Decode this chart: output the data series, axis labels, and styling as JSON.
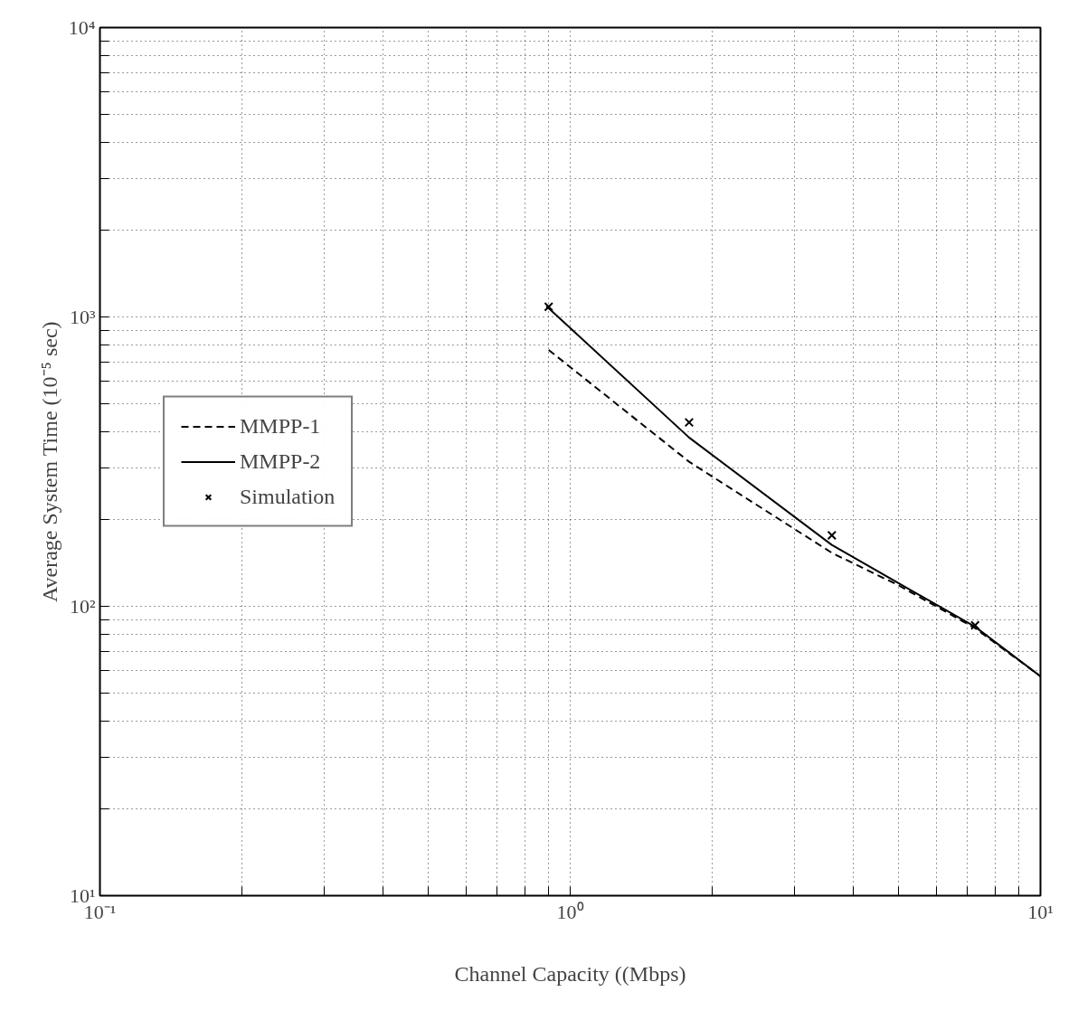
{
  "chart_data": {
    "type": "line",
    "xlabel": "Channel Capacity ((Mbps)",
    "ylabel": "Average System Time (10⁻⁵ sec)",
    "log": "xy",
    "xlim": [
      0.1,
      10
    ],
    "ylim": [
      10,
      10000
    ],
    "xticks": [
      {
        "value": 0.1,
        "label": "10⁻¹"
      },
      {
        "value": 0.2,
        "label": null
      },
      {
        "value": 0.3,
        "label": null
      },
      {
        "value": 0.4,
        "label": null
      },
      {
        "value": 0.5,
        "label": null
      },
      {
        "value": 0.6,
        "label": null
      },
      {
        "value": 0.7,
        "label": null
      },
      {
        "value": 0.8,
        "label": null
      },
      {
        "value": 0.9,
        "label": null
      },
      {
        "value": 1,
        "label": "10⁰"
      },
      {
        "value": 2,
        "label": null
      },
      {
        "value": 3,
        "label": null
      },
      {
        "value": 4,
        "label": null
      },
      {
        "value": 5,
        "label": null
      },
      {
        "value": 6,
        "label": null
      },
      {
        "value": 7,
        "label": null
      },
      {
        "value": 8,
        "label": null
      },
      {
        "value": 9,
        "label": null
      },
      {
        "value": 10,
        "label": "10¹"
      }
    ],
    "yticks": [
      {
        "value": 10,
        "label": "10¹"
      },
      {
        "value": 20,
        "label": null
      },
      {
        "value": 30,
        "label": null
      },
      {
        "value": 40,
        "label": null
      },
      {
        "value": 50,
        "label": null
      },
      {
        "value": 60,
        "label": null
      },
      {
        "value": 70,
        "label": null
      },
      {
        "value": 80,
        "label": null
      },
      {
        "value": 90,
        "label": null
      },
      {
        "value": 100,
        "label": "10²"
      },
      {
        "value": 200,
        "label": null
      },
      {
        "value": 300,
        "label": null
      },
      {
        "value": 400,
        "label": null
      },
      {
        "value": 500,
        "label": null
      },
      {
        "value": 600,
        "label": null
      },
      {
        "value": 700,
        "label": null
      },
      {
        "value": 800,
        "label": null
      },
      {
        "value": 900,
        "label": null
      },
      {
        "value": 1000,
        "label": "10³"
      },
      {
        "value": 2000,
        "label": null
      },
      {
        "value": 3000,
        "label": null
      },
      {
        "value": 4000,
        "label": null
      },
      {
        "value": 5000,
        "label": null
      },
      {
        "value": 6000,
        "label": null
      },
      {
        "value": 7000,
        "label": null
      },
      {
        "value": 8000,
        "label": null
      },
      {
        "value": 9000,
        "label": null
      },
      {
        "value": 10000,
        "label": "10⁴"
      }
    ],
    "grid": true,
    "legend": "left",
    "series": [
      {
        "name": "MMPP-1",
        "line_style": "dashed",
        "color": "#000000",
        "x": [
          0.9,
          1.79,
          3.6,
          5,
          7.26,
          10
        ],
        "values": [
          769,
          316,
          153,
          118,
          84,
          57.3
        ]
      },
      {
        "name": "MMPP-2",
        "line_style": "solid",
        "color": "#000000",
        "x": [
          0.89,
          1.79,
          3.6,
          5,
          7.26,
          10
        ],
        "values": [
          1090,
          383,
          163,
          120,
          85,
          57.3
        ]
      },
      {
        "name": "Simulation",
        "type": "scatter",
        "marker": "cross",
        "color": "#000000",
        "x": [
          0.9,
          1.79,
          3.6,
          7.26
        ],
        "values": [
          1084,
          432,
          176,
          86
        ]
      }
    ]
  }
}
